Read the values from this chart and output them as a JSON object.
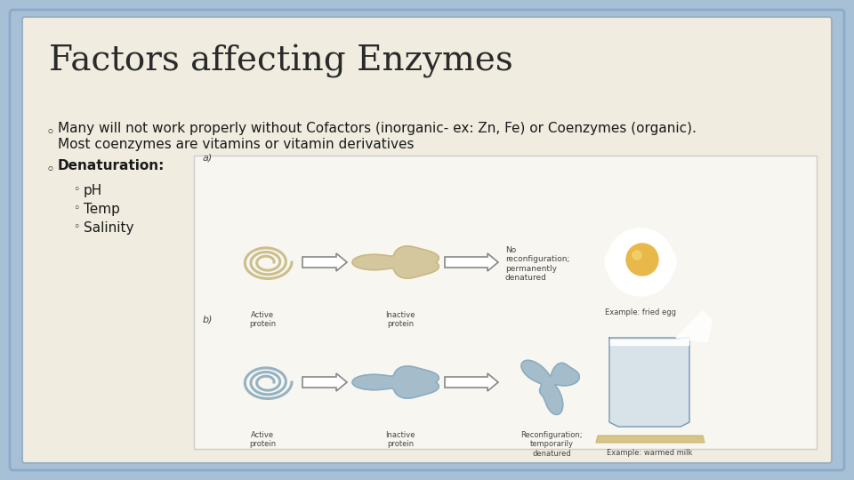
{
  "title": "Factors affecting Enzymes",
  "background_outer": "#a8c0d6",
  "background_inner": "#f0ece0",
  "border_color": "#8aabca",
  "title_color": "#2a2a2a",
  "title_fontsize": 28,
  "title_font": "serif",
  "bullet1_line1": "Many will not work properly without Cofactors (inorganic- ex: Zn, Fe) or Coenzymes (organic).",
  "bullet1_line2": "Most coenzymes are vitamins or vitamin derivatives",
  "bullet2_text": "Denaturation:",
  "sub_bullets": [
    "pH",
    "Temp",
    "Salinity"
  ],
  "bullet_fontsize": 11,
  "sub_bullet_fontsize": 11,
  "bullet_color": "#1a1a1a",
  "tan_color": "#c8b882",
  "blue_color": "#8aabbf",
  "arrow_color": "#888888",
  "label_color": "#555555",
  "img_bg": "#f8f6f0",
  "img_border": "#cccccc"
}
